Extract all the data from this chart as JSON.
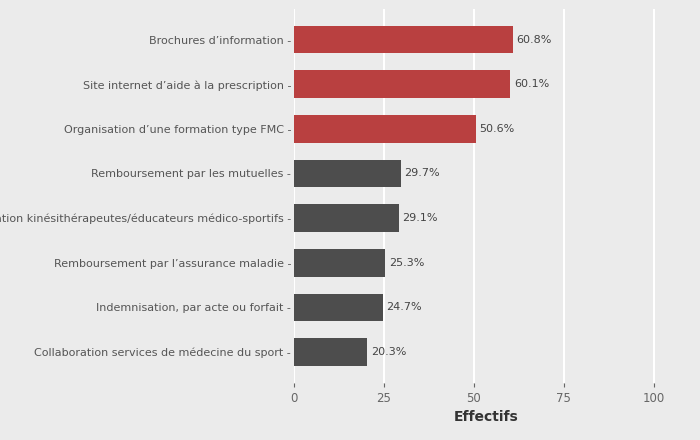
{
  "categories": [
    "Collaboration services de médecine du sport",
    "Indemnisation, par acte ou forfait",
    "Remboursement par l’assurance maladie",
    "Collaboration kinésithérapeutes/éducateurs médico-sportifs",
    "Remboursement par les mutuelles",
    "Organisation d’une formation type FMC",
    "Site internet d’aide à la prescription",
    "Brochures d’information"
  ],
  "values": [
    20.3,
    24.7,
    25.3,
    29.1,
    29.7,
    50.6,
    60.1,
    60.8
  ],
  "labels": [
    "20.3%",
    "24.7%",
    "25.3%",
    "29.1%",
    "29.7%",
    "50.6%",
    "60.1%",
    "60.8%"
  ],
  "colors": [
    "#4d4d4d",
    "#4d4d4d",
    "#4d4d4d",
    "#4d4d4d",
    "#4d4d4d",
    "#b94040",
    "#b94040",
    "#b94040"
  ],
  "xlabel": "Effectifs",
  "xlim": [
    0,
    107
  ],
  "xticks": [
    0,
    25,
    50,
    75,
    100
  ],
  "background_color": "#ebebeb",
  "bar_height": 0.62,
  "label_fontsize": 8.0,
  "tick_fontsize": 8.5,
  "xlabel_fontsize": 10,
  "grid_color": "#ffffff",
  "grid_linewidth": 1.5
}
